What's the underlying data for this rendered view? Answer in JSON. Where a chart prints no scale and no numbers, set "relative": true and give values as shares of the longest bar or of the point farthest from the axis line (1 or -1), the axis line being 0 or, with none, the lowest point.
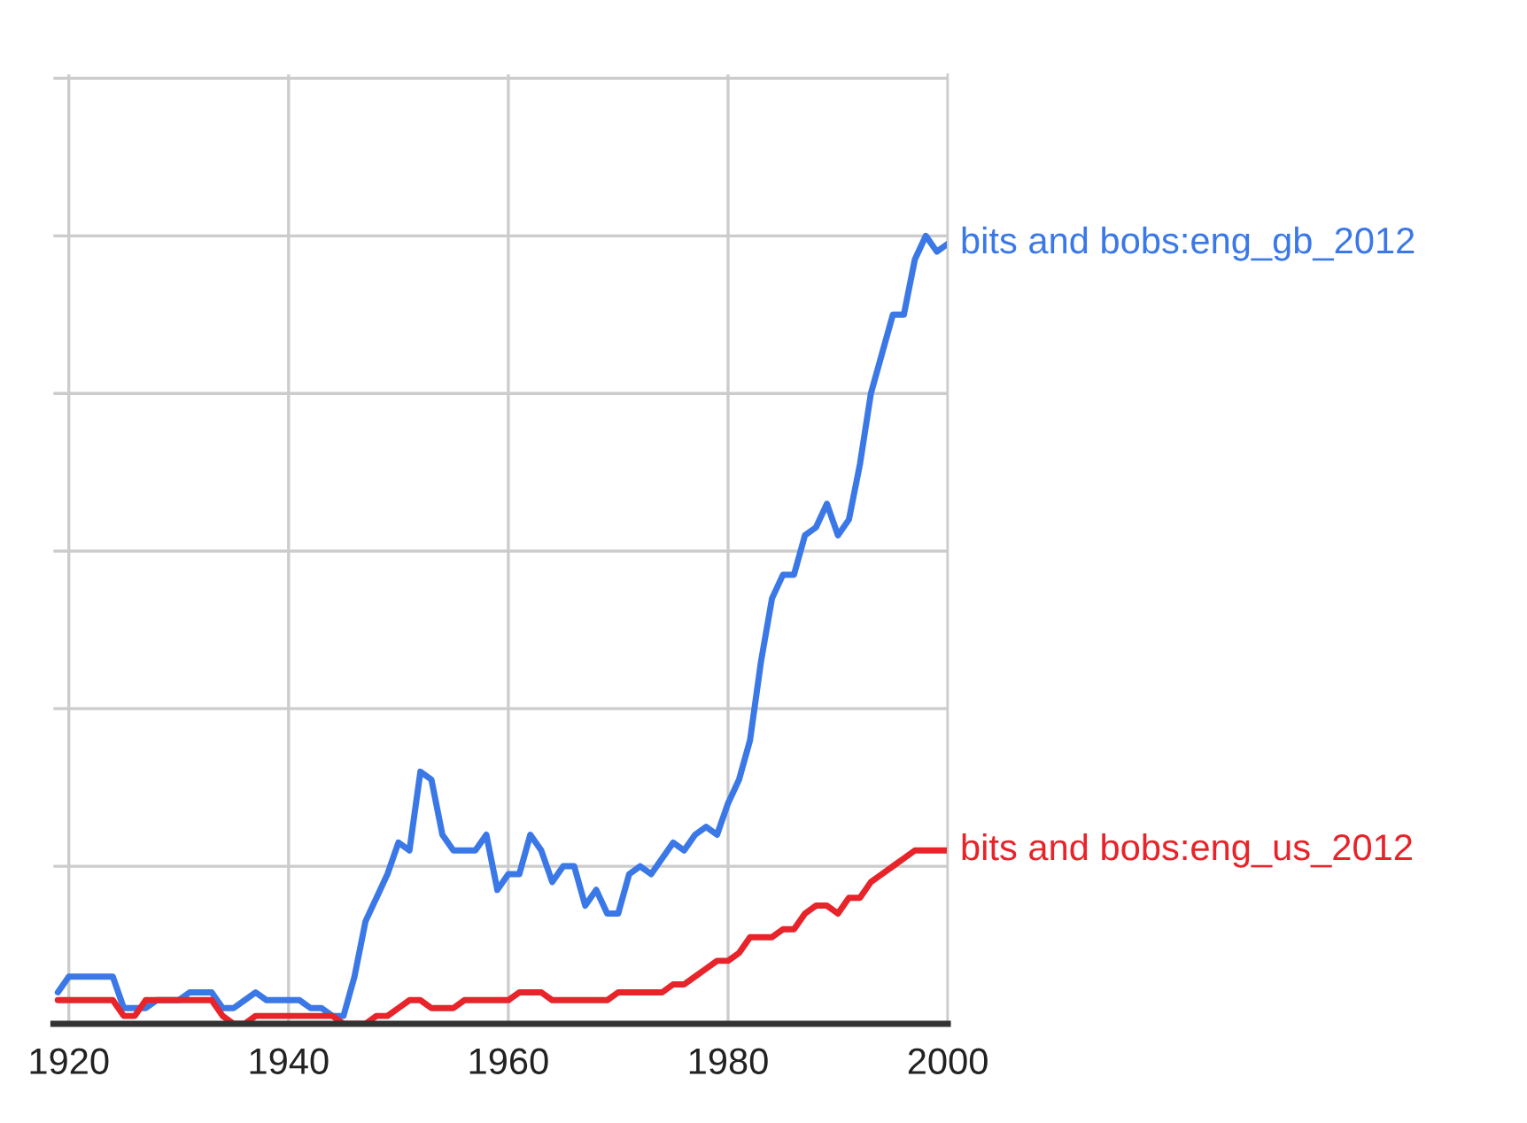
{
  "chart_data": {
    "type": "line",
    "relative": true,
    "x": [
      1919,
      1920,
      1921,
      1922,
      1923,
      1924,
      1925,
      1926,
      1927,
      1928,
      1929,
      1930,
      1931,
      1932,
      1933,
      1934,
      1935,
      1936,
      1937,
      1938,
      1939,
      1940,
      1941,
      1942,
      1943,
      1944,
      1945,
      1946,
      1947,
      1948,
      1949,
      1950,
      1951,
      1952,
      1953,
      1954,
      1955,
      1956,
      1957,
      1958,
      1959,
      1960,
      1961,
      1962,
      1963,
      1964,
      1965,
      1966,
      1967,
      1968,
      1969,
      1970,
      1971,
      1972,
      1973,
      1974,
      1975,
      1976,
      1977,
      1978,
      1979,
      1980,
      1981,
      1982,
      1983,
      1984,
      1985,
      1986,
      1987,
      1988,
      1989,
      1990,
      1991,
      1992,
      1993,
      1994,
      1995,
      1996,
      1997,
      1998,
      1999,
      2000
    ],
    "series": [
      {
        "name": "bits and bobs:eng_gb_2012",
        "color": "#3b78e7",
        "values": [
          0.04,
          0.06,
          0.06,
          0.06,
          0.06,
          0.06,
          0.02,
          0.02,
          0.02,
          0.03,
          0.03,
          0.03,
          0.04,
          0.04,
          0.04,
          0.02,
          0.02,
          0.03,
          0.04,
          0.03,
          0.03,
          0.03,
          0.03,
          0.02,
          0.02,
          0.01,
          0.01,
          0.06,
          0.13,
          0.16,
          0.19,
          0.23,
          0.22,
          0.32,
          0.31,
          0.24,
          0.22,
          0.22,
          0.22,
          0.24,
          0.17,
          0.19,
          0.19,
          0.24,
          0.22,
          0.18,
          0.2,
          0.2,
          0.15,
          0.17,
          0.14,
          0.14,
          0.19,
          0.2,
          0.19,
          0.21,
          0.23,
          0.22,
          0.24,
          0.25,
          0.24,
          0.28,
          0.31,
          0.36,
          0.46,
          0.54,
          0.57,
          0.57,
          0.62,
          0.63,
          0.66,
          0.62,
          0.64,
          0.71,
          0.8,
          0.85,
          0.9,
          0.9,
          0.97,
          1,
          0.98,
          0.99
        ]
      },
      {
        "name": "bits and bobs:eng_us_2012",
        "color": "#e8232a",
        "values": [
          0.03,
          0.03,
          0.03,
          0.03,
          0.03,
          0.03,
          0.01,
          0.01,
          0.03,
          0.03,
          0.03,
          0.03,
          0.03,
          0.03,
          0.03,
          0.01,
          0,
          0,
          0.01,
          0.01,
          0.01,
          0.01,
          0.01,
          0.01,
          0.01,
          0.01,
          0,
          0,
          0,
          0.01,
          0.01,
          0.02,
          0.03,
          0.03,
          0.02,
          0.02,
          0.02,
          0.03,
          0.03,
          0.03,
          0.03,
          0.03,
          0.04,
          0.04,
          0.04,
          0.03,
          0.03,
          0.03,
          0.03,
          0.03,
          0.03,
          0.04,
          0.04,
          0.04,
          0.04,
          0.04,
          0.05,
          0.05,
          0.06,
          0.07,
          0.08,
          0.08,
          0.09,
          0.11,
          0.11,
          0.11,
          0.12,
          0.12,
          0.14,
          0.15,
          0.15,
          0.14,
          0.16,
          0.16,
          0.18,
          0.19,
          0.2,
          0.21,
          0.22,
          0.22,
          0.22,
          0.22
        ]
      }
    ],
    "xlim": [
      1918.6,
      2000
    ],
    "xticks": [
      1920,
      1940,
      1960,
      1980,
      2000
    ],
    "tick_labels": "x",
    "grid": true
  }
}
